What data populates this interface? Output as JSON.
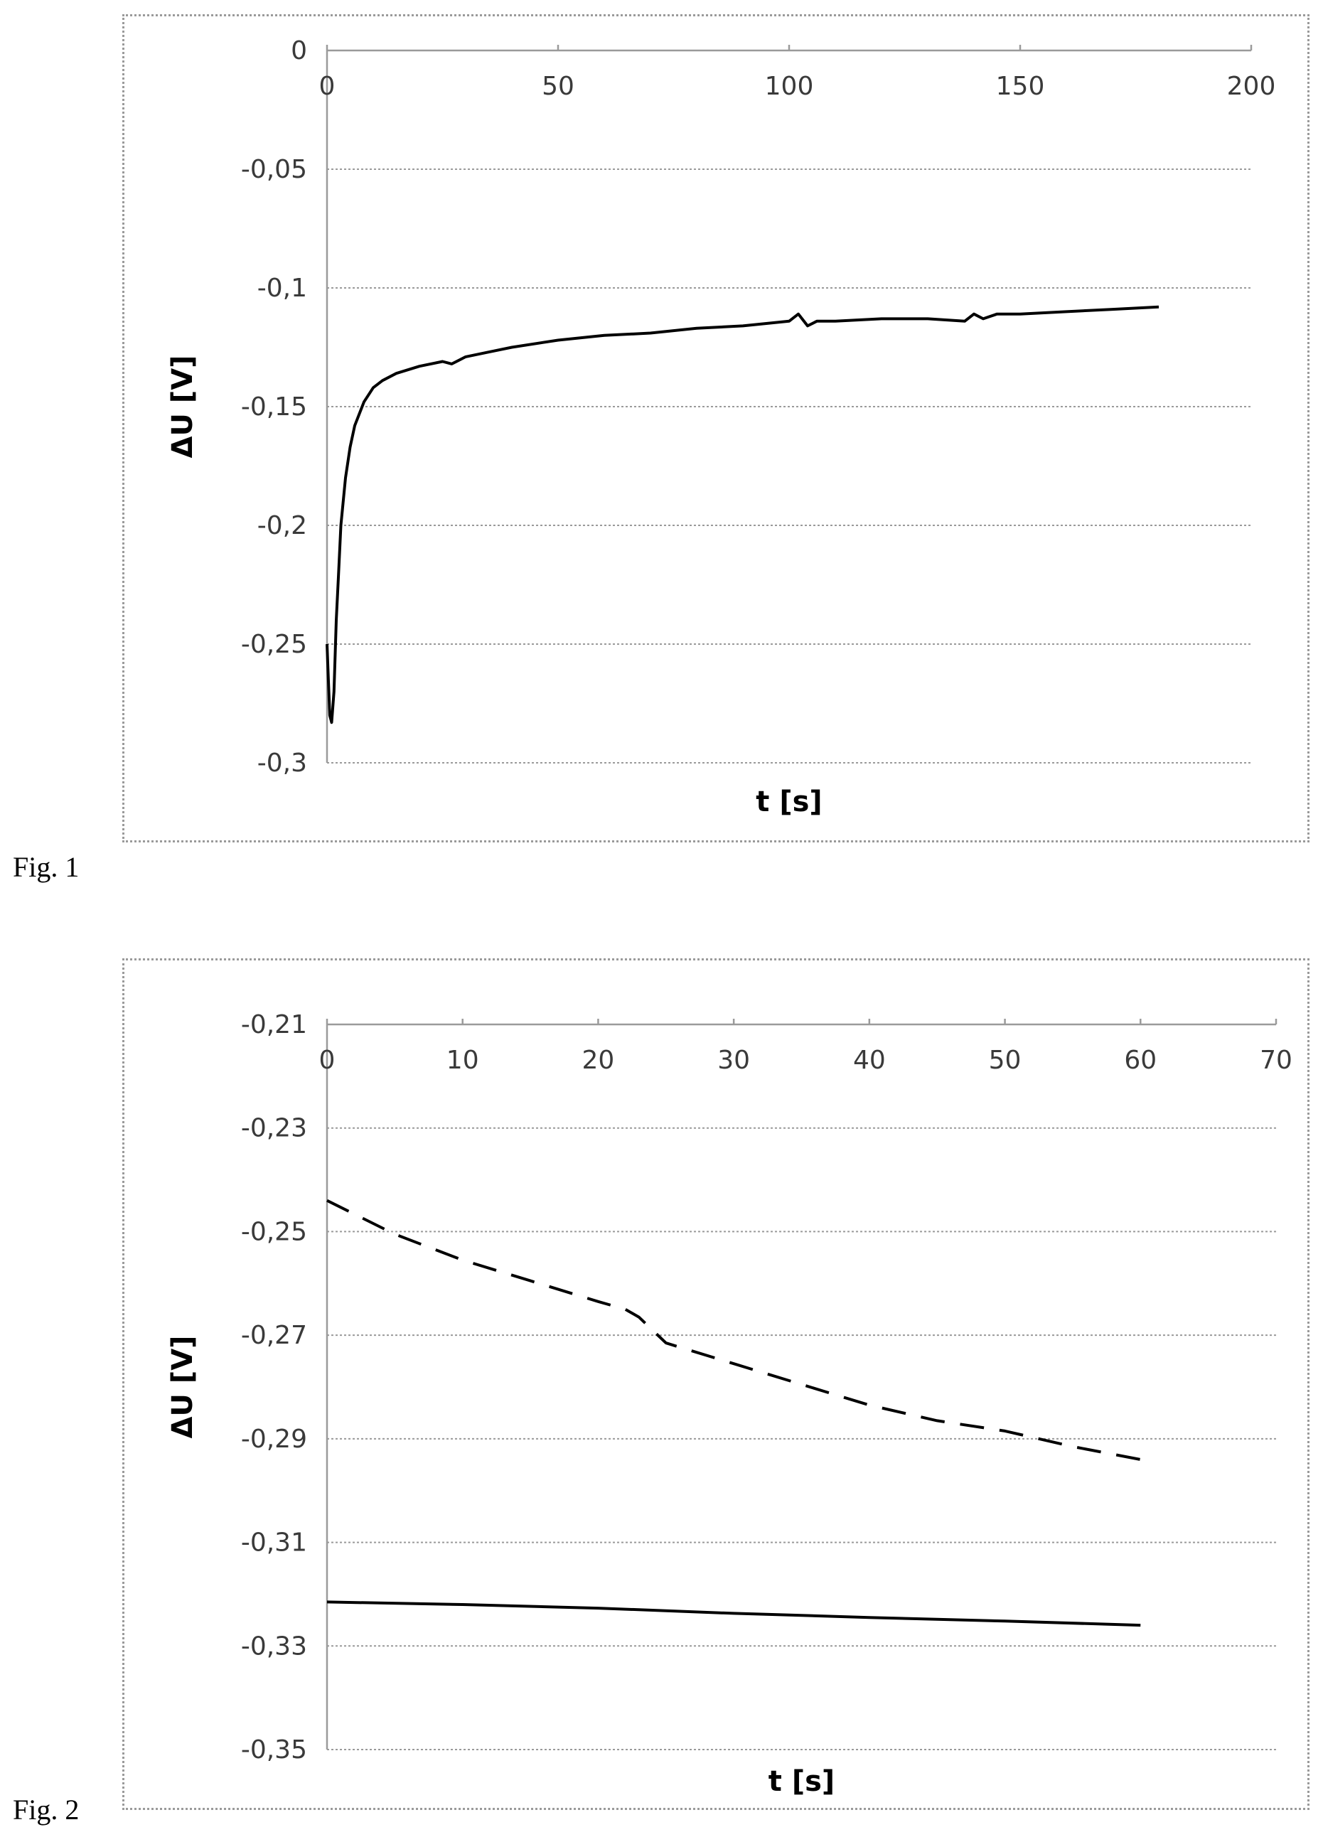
{
  "chart_data": [
    {
      "type": "line",
      "figure_label": "Fig. 1",
      "xlabel": "t [s]",
      "ylabel": "ΔU [V]",
      "xlim": [
        0,
        200
      ],
      "ylim": [
        -0.3,
        0
      ],
      "x_ticks": [
        "0",
        "50",
        "100",
        "150",
        "200"
      ],
      "y_ticks": [
        "0",
        "-0,05",
        "-0,1",
        "-0,15",
        "-0,2",
        "-0,25",
        "-0,3"
      ],
      "x_axis_position": "top",
      "grid": true,
      "series": [
        {
          "style": "solid",
          "points": [
            [
              0,
              -0.25
            ],
            [
              0.3,
              -0.265
            ],
            [
              0.6,
              -0.28
            ],
            [
              1,
              -0.283
            ],
            [
              1.5,
              -0.27
            ],
            [
              2,
              -0.24
            ],
            [
              2.5,
              -0.22
            ],
            [
              3,
              -0.2
            ],
            [
              4,
              -0.18
            ],
            [
              5,
              -0.167
            ],
            [
              6,
              -0.158
            ],
            [
              8,
              -0.148
            ],
            [
              10,
              -0.142
            ],
            [
              12,
              -0.139
            ],
            [
              15,
              -0.136
            ],
            [
              20,
              -0.133
            ],
            [
              25,
              -0.131
            ],
            [
              27,
              -0.132
            ],
            [
              30,
              -0.129
            ],
            [
              35,
              -0.127
            ],
            [
              40,
              -0.125
            ],
            [
              50,
              -0.122
            ],
            [
              60,
              -0.12
            ],
            [
              70,
              -0.119
            ],
            [
              80,
              -0.117
            ],
            [
              90,
              -0.116
            ],
            [
              100,
              -0.114
            ],
            [
              102,
              -0.111
            ],
            [
              104,
              -0.116
            ],
            [
              106,
              -0.114
            ],
            [
              110,
              -0.114
            ],
            [
              120,
              -0.113
            ],
            [
              130,
              -0.113
            ],
            [
              138,
              -0.114
            ],
            [
              140,
              -0.111
            ],
            [
              142,
              -0.113
            ],
            [
              145,
              -0.111
            ],
            [
              150,
              -0.111
            ],
            [
              160,
              -0.11
            ],
            [
              170,
              -0.109
            ],
            [
              180,
              -0.108
            ]
          ]
        }
      ]
    },
    {
      "type": "line",
      "figure_label": "Fig. 2",
      "xlabel": "t [s]",
      "ylabel": "ΔU [V]",
      "xlim": [
        0,
        70
      ],
      "ylim": [
        -0.35,
        -0.21
      ],
      "x_ticks": [
        "0",
        "10",
        "20",
        "30",
        "40",
        "50",
        "60",
        "70"
      ],
      "y_ticks": [
        "-0,21",
        "-0,23",
        "-0,25",
        "-0,27",
        "-0,29",
        "-0,31",
        "-0,33",
        "-0,35"
      ],
      "x_axis_position": "top",
      "grid": true,
      "series": [
        {
          "style": "dashed",
          "points": [
            [
              0,
              -0.244
            ],
            [
              5,
              -0.2505
            ],
            [
              10,
              -0.2555
            ],
            [
              15,
              -0.2595
            ],
            [
              20,
              -0.2635
            ],
            [
              22,
              -0.265
            ],
            [
              23,
              -0.2665
            ],
            [
              25,
              -0.2715
            ],
            [
              30,
              -0.2755
            ],
            [
              35,
              -0.2795
            ],
            [
              40,
              -0.2835
            ],
            [
              45,
              -0.2865
            ],
            [
              50,
              -0.2885
            ],
            [
              55,
              -0.2915
            ],
            [
              60,
              -0.294
            ]
          ]
        },
        {
          "style": "solid",
          "points": [
            [
              0,
              -0.3215
            ],
            [
              10,
              -0.322
            ],
            [
              20,
              -0.3227
            ],
            [
              30,
              -0.3237
            ],
            [
              40,
              -0.3245
            ],
            [
              50,
              -0.3252
            ],
            [
              60,
              -0.326
            ]
          ]
        }
      ]
    }
  ]
}
